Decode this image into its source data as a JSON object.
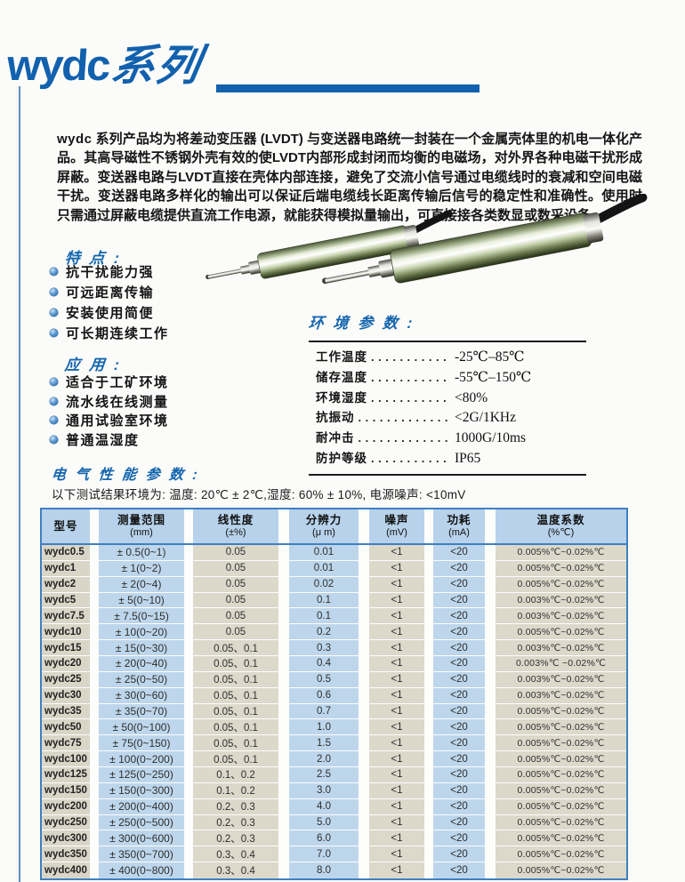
{
  "header": {
    "series_logo": "wydc",
    "series_suffix": "系列",
    "accent_color": "#1261ae"
  },
  "intro": {
    "lead": "wydc",
    "text": "系列产品均为将差动变压器 (LVDT) 与变送器电路统一封装在一个金属壳体里的机电一体化产品。其高导磁性不锈钢外壳有效的使LVDT内部形成封闭而均衡的电磁场，对外界各种电磁干扰形成屏蔽。变送器电路与LVDT直接在壳体内部连接，避免了交流小信号通过电缆线时的衰减和空间电磁干扰。变送器电路多样化的输出可以保证后端电缆线长距离传输后信号的稳定性和准确性。使用时只需通过屏蔽电缆提供直流工作电源，就能获得模拟量输出，可直接接各类数显或数采设备。"
  },
  "images": {
    "sensor_small": "lvdt-sensor-photo",
    "sensor_large": "lvdt-sensor-photo"
  },
  "features": {
    "heading": "特 点 :",
    "items": [
      "抗干扰能力强",
      "可远距离传输",
      "安装使用简便",
      "可长期连续工作"
    ]
  },
  "applications": {
    "heading": "应 用 :",
    "items": [
      "适合于工矿环境",
      "流水线在线测量",
      "通用试验室环境",
      "普通温湿度"
    ]
  },
  "environment": {
    "heading": "环 境 参 数 :",
    "rows": [
      {
        "label": "工作温度",
        "dots": "..................",
        "value": "-25℃–85℃"
      },
      {
        "label": "储存温度",
        "dots": "..................",
        "value": "-55℃–150℃"
      },
      {
        "label": "环境湿度",
        "dots": "..................",
        "value": "<80%"
      },
      {
        "label": "抗振动",
        "dots": "..................",
        "value": "<2G/1KHz"
      },
      {
        "label": "耐冲击",
        "dots": "..................",
        "value": "1000G/10ms"
      },
      {
        "label": "防护等级",
        "dots": "..................",
        "value": "IP65"
      }
    ]
  },
  "electrical": {
    "heading": "电 气 性 能 参 数 :",
    "conditions": "以下测试结果环境为:  温度: 20℃ ± 2℃,湿度:  60% ± 10%,  电源噪声: <10mV"
  },
  "table": {
    "columns": [
      {
        "title": "型号",
        "unit": ""
      },
      {
        "title": "测量范围",
        "unit": "(mm)"
      },
      {
        "title": "线性度",
        "unit": "(±%)"
      },
      {
        "title": "分辨力",
        "unit": "(μ m)"
      },
      {
        "title": "噪声",
        "unit": "(mV)"
      },
      {
        "title": "功耗",
        "unit": "(mA)"
      },
      {
        "title": "温度系数",
        "unit": "(%℃)"
      }
    ],
    "rows": [
      [
        "wydc0.5",
        "± 0.5(0~1)",
        "0.05",
        "0.01",
        "<1",
        "<20",
        "0.005%℃~0.02%℃"
      ],
      [
        "wydc1",
        "± 1(0~2)",
        "0.05",
        "0.01",
        "<1",
        "<20",
        "0.005%℃~0.02%℃"
      ],
      [
        "wydc2",
        "± 2(0~4)",
        "0.05",
        "0.02",
        "<1",
        "<20",
        "0.005%℃~0.02%℃"
      ],
      [
        "wydc5",
        "± 5(0~10)",
        "0.05",
        "0.1",
        "<1",
        "<20",
        "0.003%℃~0.02%℃"
      ],
      [
        "wydc7.5",
        "± 7.5(0~15)",
        "0.05",
        "0.1",
        "<1",
        "<20",
        "0.003%℃~0.02%℃"
      ],
      [
        "wydc10",
        "± 10(0~20)",
        "0.05",
        "0.2",
        "<1",
        "<20",
        "0.005%℃~0.02%℃"
      ],
      [
        "wydc15",
        "± 15(0~30)",
        "0.05、0.1",
        "0.3",
        "<1",
        "<20",
        "0.003%℃~0.02%℃"
      ],
      [
        "wydc20",
        "± 20(0~40)",
        "0.05、0.1",
        "0.4",
        "<1",
        "<20",
        "0.003%℃ ~0.02%℃"
      ],
      [
        "wydc25",
        "± 25(0~50)",
        "0.05、0.1",
        "0.5",
        "<1",
        "<20",
        "0.003%℃~0.02%℃"
      ],
      [
        "wydc30",
        "± 30(0~60)",
        "0.05、0.1",
        "0.6",
        "<1",
        "<20",
        "0.003%℃~0.02%℃"
      ],
      [
        "wydc35",
        "± 35(0~70)",
        "0.05、0.1",
        "0.7",
        "<1",
        "<20",
        "0.005%℃~0.02%℃"
      ],
      [
        "wydc50",
        "± 50(0~100)",
        "0.05、0.1",
        "1.0",
        "<1",
        "<20",
        "0.005%℃~0.02%℃"
      ],
      [
        "wydc75",
        "± 75(0~150)",
        "0.05、0.1",
        "1.5",
        "<1",
        "<20",
        "0.005%℃~0.02%℃"
      ],
      [
        "wydc100",
        "± 100(0~200)",
        "0.05、0.1",
        "2.0",
        "<1",
        "<20",
        "0.005%℃~0.02%℃"
      ],
      [
        "wydc125",
        "± 125(0~250)",
        "0.1、0.2",
        "2.5",
        "<1",
        "<20",
        "0.005%℃~0.02%℃"
      ],
      [
        "wydc150",
        "± 150(0~300)",
        "0.1、0.2",
        "3.0",
        "<1",
        "<20",
        "0.005%℃~0.02%℃"
      ],
      [
        "wydc200",
        "± 200(0~400)",
        "0.2、0.3",
        "4.0",
        "<1",
        "<20",
        "0.005%℃~0.02%℃"
      ],
      [
        "wydc250",
        "± 250(0~500)",
        "0.2、0.3",
        "5.0",
        "<1",
        "<20",
        "0.005%℃~0.02%℃"
      ],
      [
        "wydc300",
        "± 300(0~600)",
        "0.2、0.3",
        "6.0",
        "<1",
        "<20",
        "0.005%℃~0.02%℃"
      ],
      [
        "wydc350",
        "± 350(0~700)",
        "0.3、0.4",
        "7.0",
        "<1",
        "<20",
        "0.005%℃~0.02%℃"
      ],
      [
        "wydc400",
        "± 400(0~800)",
        "0.3、0.4",
        "8.0",
        "<1",
        "<20",
        "0.005%℃~0.02%℃"
      ]
    ]
  },
  "colors": {
    "accent_blue": "#1261ae",
    "table_border_blue": "#3f80c1",
    "cell_blue": "#bdd6eb",
    "cell_beige": "#dcd8ca"
  }
}
